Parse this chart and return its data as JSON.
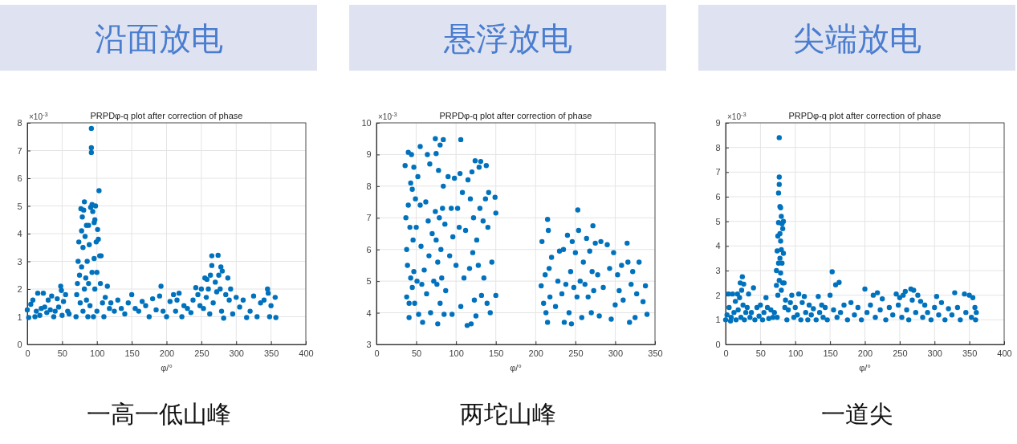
{
  "chart_data": [
    {
      "type": "scatter",
      "title": "沿面放电",
      "subtitle": "PRPDφ-q plot after correction of phase",
      "xlabel": "φ/°",
      "annotations": [
        "×10$^{-3}$",
        "一高一低山峰"
      ],
      "marker": "circle",
      "grid": true,
      "xlim": [
        0,
        400
      ],
      "xticks": [
        0,
        50,
        100,
        150,
        200,
        250,
        300,
        350,
        400
      ],
      "ylim": [
        0,
        8
      ],
      "yticks": [
        0,
        1,
        2,
        3,
        4,
        5,
        6,
        7,
        8
      ],
      "series": [
        {
          "color": "#0072bd",
          "x": [
            0,
            2,
            5,
            8,
            11,
            13,
            15,
            18,
            20,
            23,
            25,
            28,
            30,
            33,
            35,
            38,
            40,
            43,
            45,
            48,
            49,
            50,
            52,
            55,
            58,
            60,
            70,
            71,
            72,
            73,
            74,
            75,
            76,
            77,
            78,
            78,
            79,
            80,
            80,
            81,
            82,
            82,
            83,
            84,
            85,
            85,
            86,
            87,
            88,
            88,
            89,
            90,
            91,
            92,
            92,
            92,
            93,
            93,
            94,
            95,
            96,
            96,
            97,
            97,
            98,
            99,
            100,
            100,
            101,
            102,
            103,
            104,
            105,
            106,
            108,
            110,
            112,
            115,
            118,
            120,
            125,
            130,
            135,
            140,
            145,
            150,
            155,
            160,
            165,
            170,
            175,
            180,
            185,
            190,
            192,
            195,
            200,
            205,
            210,
            213,
            215,
            218,
            222,
            225,
            230,
            235,
            238,
            242,
            245,
            248,
            250,
            253,
            255,
            257,
            258,
            260,
            262,
            263,
            265,
            265,
            267,
            270,
            272,
            274,
            275,
            277,
            278,
            279,
            280,
            282,
            285,
            288,
            290,
            292,
            295,
            300,
            305,
            310,
            315,
            320,
            325,
            330,
            335,
            340,
            345,
            346,
            348,
            350,
            356,
            357
          ],
          "values": [
            1.25,
            0.97,
            1.45,
            1.6,
            1.0,
            1.2,
            1.85,
            1.05,
            1.3,
            1.85,
            1.35,
            1.15,
            1.6,
            1.25,
            1.75,
            1.0,
            1.2,
            1.65,
            1.35,
            2.1,
            1.95,
            1.05,
            1.55,
            1.8,
            1.2,
            1.1,
            1.0,
            1.8,
            2.2,
            3.0,
            3.7,
            2.5,
            1.5,
            4.9,
            4.1,
            2.8,
            4.6,
            3.5,
            1.2,
            4.85,
            5.15,
            2.0,
            3.9,
            2.4,
            4.3,
            1.6,
            3.0,
            1.0,
            4.3,
            2.2,
            3.6,
            1.4,
            4.95,
            7.8,
            7.1,
            6.93,
            5.05,
            2.6,
            4.8,
            1.0,
            4.4,
            3.1,
            4.5,
            2.0,
            5.0,
            3.7,
            2.6,
            1.2,
            4.15,
            3.8,
            5.55,
            3.2,
            2.2,
            3.2,
            1.5,
            1.0,
            1.7,
            2.1,
            1.3,
            1.5,
            1.2,
            1.6,
            1.3,
            1.1,
            1.5,
            1.8,
            1.3,
            1.2,
            1.55,
            1.4,
            1.0,
            1.65,
            1.25,
            1.75,
            2.1,
            1.2,
            1.0,
            1.55,
            1.8,
            1.2,
            1.6,
            1.85,
            1.0,
            1.4,
            1.3,
            1.15,
            1.6,
            2.05,
            1.8,
            1.4,
            2.0,
            1.3,
            2.4,
            1.7,
            2.35,
            2.0,
            1.1,
            2.5,
            2.85,
            3.2,
            1.5,
            2.25,
            1.9,
            3.22,
            2.5,
            2.0,
            2.8,
            1.2,
            2.65,
            0.95,
            1.8,
            2.4,
            1.6,
            2.0,
            1.1,
            1.7,
            1.35,
            1.6,
            0.97,
            1.2,
            1.75,
            1.0,
            1.5,
            1.6,
            2.0,
            1.85,
            1.0,
            1.4,
            1.7,
            0.97
          ]
        }
      ]
    },
    {
      "type": "scatter",
      "title": "悬浮放电",
      "subtitle": "PRPDφ-q plot after correction of phase",
      "xlabel": "φ/°",
      "annotations": [
        "×10$^{-3}$",
        "两坨山峰"
      ],
      "marker": "circle",
      "grid": true,
      "xlim": [
        0,
        350
      ],
      "xticks": [
        0,
        50,
        100,
        150,
        200,
        250,
        300,
        350
      ],
      "ylim": [
        3,
        10
      ],
      "yticks": [
        3,
        4,
        5,
        6,
        7,
        8,
        9,
        10
      ],
      "series": [
        {
          "color": "#0072bd",
          "x": [
            36,
            37,
            38,
            38,
            39,
            40,
            40,
            41,
            41,
            42,
            43,
            43,
            44,
            45,
            45,
            46,
            47,
            47,
            48,
            49,
            50,
            51,
            52,
            53,
            55,
            55,
            56,
            57,
            58,
            60,
            62,
            63,
            64,
            65,
            66,
            67,
            68,
            70,
            72,
            74,
            74,
            75,
            75,
            76,
            77,
            77,
            78,
            79,
            80,
            80,
            81,
            82,
            83,
            84,
            84,
            85,
            86,
            87,
            90,
            92,
            94,
            95,
            96,
            98,
            100,
            102,
            104,
            105,
            106,
            106,
            108,
            110,
            112,
            114,
            115,
            117,
            118,
            119,
            120,
            121,
            122,
            123,
            124,
            125,
            126,
            128,
            129,
            130,
            131,
            132,
            134,
            135,
            137,
            138,
            139,
            140,
            141,
            143,
            145,
            149,
            150,
            150,
            207,
            208,
            210,
            212,
            213,
            215,
            215,
            216,
            217,
            218,
            220,
            225,
            228,
            230,
            233,
            235,
            236,
            238,
            240,
            242,
            244,
            245,
            246,
            248,
            250,
            252,
            253,
            254,
            256,
            258,
            260,
            262,
            264,
            266,
            268,
            270,
            271,
            272,
            273,
            275,
            278,
            280,
            282,
            285,
            290,
            293,
            295,
            298,
            300,
            303,
            305,
            308,
            310,
            315,
            316,
            318,
            320,
            322,
            325,
            327,
            330,
            335,
            338,
            340
          ],
          "values": [
            8.65,
            7.0,
            6.0,
            4.5,
            5.5,
            9.07,
            7.4,
            4.3,
            3.85,
            6.7,
            5.1,
            8.1,
            9.0,
            7.9,
            4.8,
            6.3,
            8.6,
            5.3,
            4.3,
            7.6,
            6.7,
            5.0,
            8.3,
            3.95,
            9.25,
            7.4,
            6.1,
            4.9,
            3.7,
            5.35,
            7.5,
            4.6,
            9.0,
            6.9,
            5.8,
            8.7,
            4.0,
            6.5,
            5.0,
            9.5,
            7.2,
            9.03,
            6.3,
            4.9,
            3.65,
            5.6,
            8.5,
            7.0,
            9.3,
            4.3,
            6.0,
            5.1,
            7.3,
            9.47,
            8.0,
            3.95,
            6.8,
            4.7,
            8.3,
            5.8,
            7.3,
            3.95,
            6.4,
            8.25,
            5.5,
            7.3,
            6.7,
            8.4,
            9.47,
            4.2,
            7.8,
            5.1,
            6.6,
            3.6,
            8.2,
            5.4,
            7.6,
            3.65,
            8.45,
            5.9,
            7.0,
            4.4,
            8.8,
            3.9,
            6.3,
            5.5,
            8.6,
            7.3,
            8.78,
            4.55,
            6.9,
            5.1,
            7.6,
            8.65,
            4.3,
            6.7,
            7.8,
            4.0,
            5.6,
            7.65,
            7.15,
            4.55,
            4.85,
            6.25,
            4.3,
            5.2,
            4.0,
            6.95,
            3.7,
            6.6,
            5.4,
            4.5,
            5.75,
            4.2,
            5.0,
            5.95,
            4.6,
            6.0,
            3.7,
            4.9,
            6.45,
            4.0,
            5.3,
            3.65,
            6.25,
            4.8,
            5.9,
            4.5,
            7.25,
            6.6,
            5.0,
            3.85,
            5.6,
            4.9,
            6.35,
            4.5,
            5.95,
            4.0,
            5.3,
            6.75,
            4.7,
            6.2,
            5.2,
            3.9,
            6.25,
            4.8,
            6.15,
            5.4,
            3.8,
            5.9,
            4.25,
            5.2,
            4.7,
            5.5,
            4.4,
            6.2,
            5.6,
            3.7,
            4.9,
            5.3,
            3.85,
            4.6,
            5.6,
            4.35,
            4.85,
            3.95
          ]
        }
      ]
    },
    {
      "type": "scatter",
      "title": "尖端放电",
      "subtitle": "PRPDφ-q plot after correction of phase",
      "xlabel": "φ/°",
      "annotations": [
        "×10$^{-3}$",
        "一道尖"
      ],
      "marker": "circle",
      "grid": true,
      "xlim": [
        0,
        400
      ],
      "xticks": [
        0,
        50,
        100,
        150,
        200,
        250,
        300,
        350,
        400
      ],
      "ylim": [
        0,
        9
      ],
      "yticks": [
        0,
        1,
        2,
        3,
        4,
        5,
        6,
        7,
        8,
        9
      ],
      "series": [
        {
          "color": "#0072bd",
          "x": [
            0,
            2,
            4,
            5,
            7,
            8,
            10,
            12,
            14,
            15,
            17,
            18,
            20,
            21,
            22,
            23,
            24,
            25,
            26,
            27,
            29,
            31,
            33,
            35,
            37,
            40,
            42,
            45,
            48,
            50,
            53,
            55,
            58,
            60,
            62,
            65,
            68,
            70,
            73,
            73,
            74,
            74,
            75,
            75,
            76,
            76,
            76,
            77,
            77,
            77,
            77,
            78,
            78,
            78,
            79,
            79,
            79,
            80,
            80,
            80,
            81,
            81,
            82,
            82,
            83,
            83,
            84,
            85,
            86,
            88,
            90,
            93,
            95,
            98,
            100,
            103,
            105,
            108,
            110,
            113,
            115,
            118,
            120,
            123,
            126,
            130,
            133,
            135,
            138,
            140,
            143,
            146,
            150,
            153,
            155,
            158,
            160,
            163,
            165,
            170,
            175,
            180,
            185,
            190,
            195,
            200,
            203,
            208,
            212,
            215,
            218,
            222,
            225,
            230,
            235,
            240,
            245,
            248,
            250,
            253,
            255,
            258,
            260,
            263,
            266,
            268,
            270,
            273,
            276,
            280,
            283,
            286,
            290,
            295,
            300,
            303,
            306,
            310,
            315,
            320,
            325,
            329,
            333,
            337,
            343,
            345,
            350,
            353,
            355,
            358,
            359,
            360
          ],
          "values": [
            1.0,
            1.2,
            2.05,
            1.5,
            0.95,
            1.1,
            2.05,
            1.3,
            1.75,
            1.0,
            2.05,
            1.4,
            1.9,
            2.5,
            1.1,
            2.2,
            2.75,
            1.6,
            2.45,
            1.0,
            1.3,
            1.5,
            2.05,
            1.1,
            1.3,
            2.3,
            1.0,
            1.5,
            1.15,
            1.6,
            1.0,
            1.3,
            1.9,
            1.5,
            1.05,
            1.4,
            1.1,
            1.3,
            2.4,
            3.0,
            1.1,
            3.8,
            4.4,
            2.0,
            6.15,
            4.95,
            3.3,
            8.4,
            6.8,
            6.5,
            2.6,
            5.6,
            4.5,
            3.5,
            5.55,
            4.2,
            2.9,
            5.2,
            3.85,
            2.2,
            4.9,
            3.3,
            4.7,
            2.5,
            5.0,
            3.7,
            2.5,
            1.5,
            1.8,
            1.0,
            1.4,
            1.7,
            2.0,
            1.1,
            1.5,
            1.2,
            2.05,
            1.0,
            1.7,
            1.95,
            1.3,
            1.0,
            1.6,
            1.2,
            1.45,
            1.0,
            1.95,
            1.3,
            1.6,
            1.1,
            1.5,
            1.0,
            2.0,
            2.95,
            1.4,
            2.42,
            1.1,
            2.52,
            1.3,
            1.6,
            1.0,
            1.7,
            1.2,
            1.5,
            1.0,
            2.25,
            1.3,
            1.6,
            2.0,
            1.1,
            2.1,
            1.4,
            1.85,
            1.0,
            1.5,
            1.2,
            2.05,
            1.6,
            1.9,
            1.1,
            2.0,
            2.15,
            1.4,
            1.0,
            2.25,
            1.8,
            2.2,
            1.3,
            2.0,
            1.75,
            1.1,
            1.6,
            1.3,
            1.0,
            1.5,
            1.95,
            1.2,
            1.7,
            1.0,
            1.45,
            1.2,
            2.1,
            1.5,
            1.0,
            2.05,
            1.3,
            2.0,
            1.1,
            1.9,
            1.5,
            1.0,
            1.3
          ]
        }
      ]
    }
  ]
}
